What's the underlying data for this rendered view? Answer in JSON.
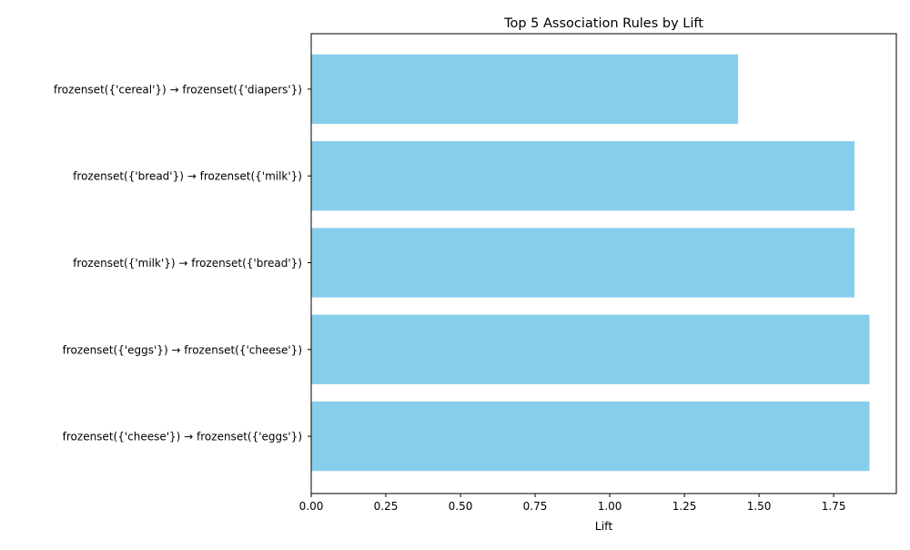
{
  "chart_data": {
    "type": "bar",
    "orientation": "horizontal",
    "title": "Top 5 Association Rules by Lift",
    "xlabel": "Lift",
    "ylabel": "",
    "categories": [
      "frozenset({'cereal'}) → frozenset({'diapers'})",
      "frozenset({'bread'}) → frozenset({'milk'})",
      "frozenset({'milk'}) → frozenset({'bread'})",
      "frozenset({'eggs'}) → frozenset({'cheese'})",
      "frozenset({'cheese'}) → frozenset({'eggs'})"
    ],
    "values": [
      1.43,
      1.82,
      1.82,
      1.87,
      1.87
    ],
    "xlim": [
      0,
      1.96
    ],
    "xticks": [
      "0.00",
      "0.25",
      "0.50",
      "0.75",
      "1.00",
      "1.25",
      "1.50",
      "1.75"
    ],
    "bar_color": "#87ceeb",
    "grid": false,
    "legend": "none"
  }
}
